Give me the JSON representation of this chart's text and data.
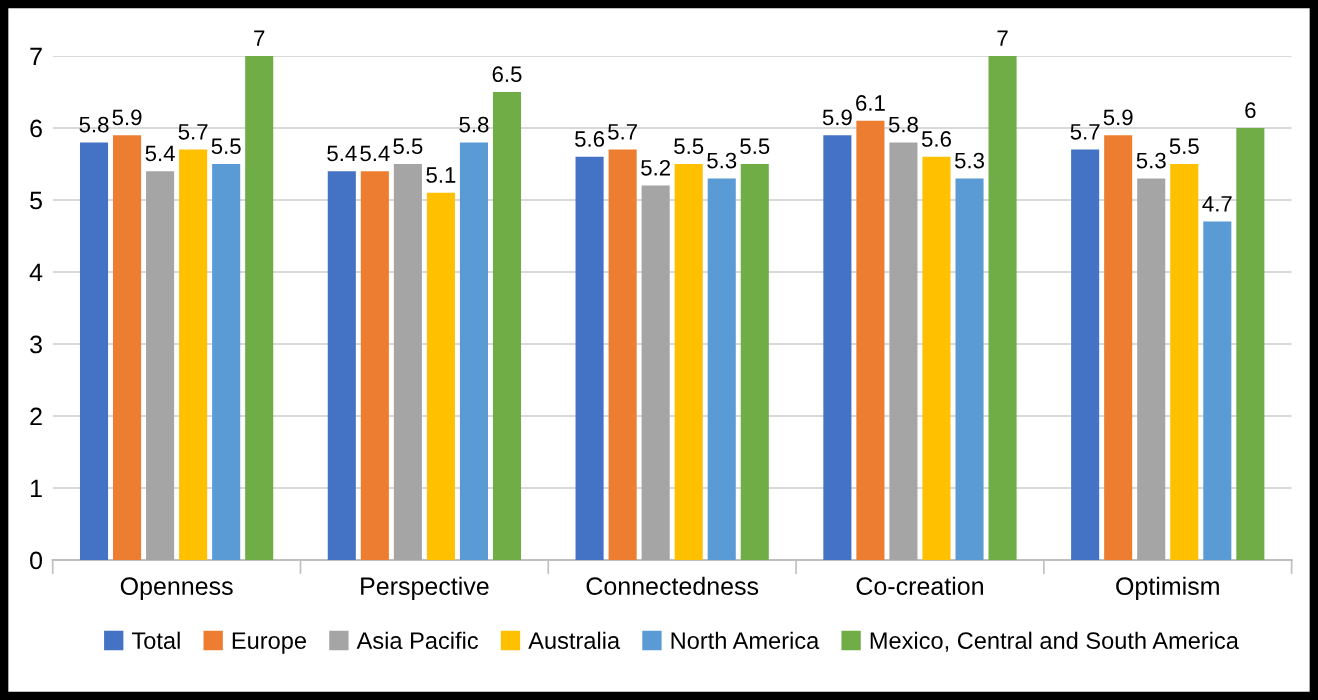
{
  "chart_data": {
    "type": "bar",
    "categories": [
      "Openness",
      "Perspective",
      "Connectedness",
      "Co-creation",
      "Optimism"
    ],
    "series": [
      {
        "name": "Total",
        "color": "#4472c4",
        "values": [
          5.8,
          5.4,
          5.6,
          5.9,
          5.7
        ]
      },
      {
        "name": "Europe",
        "color": "#ed7d31",
        "values": [
          5.9,
          5.4,
          5.7,
          6.1,
          5.9
        ]
      },
      {
        "name": "Asia Pacific",
        "color": "#a5a5a5",
        "values": [
          5.4,
          5.5,
          5.2,
          5.8,
          5.3
        ]
      },
      {
        "name": "Australia",
        "color": "#ffc000",
        "values": [
          5.7,
          5.1,
          5.5,
          5.6,
          5.5
        ]
      },
      {
        "name": "North America",
        "color": "#5b9bd5",
        "values": [
          5.5,
          5.8,
          5.3,
          5.3,
          4.7
        ]
      },
      {
        "name": "Mexico, Central and South America",
        "color": "#70ad47",
        "values": [
          7,
          6.5,
          5.5,
          7,
          6
        ]
      }
    ],
    "ylim": [
      0,
      7
    ],
    "yticks": [
      0,
      1,
      2,
      3,
      4,
      5,
      6,
      7
    ],
    "grid": "y",
    "legend": "bottom",
    "data_labels": true
  }
}
